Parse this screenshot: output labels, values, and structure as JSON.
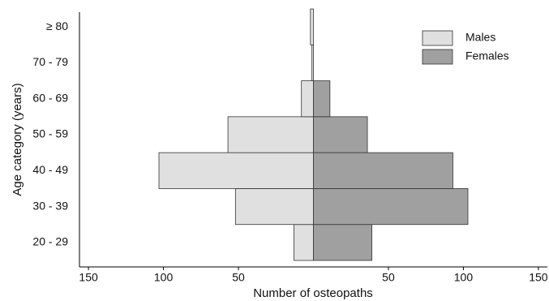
{
  "chart_data": {
    "type": "pyramid",
    "categories": [
      "20 - 29",
      "30 - 39",
      "40 - 49",
      "50 - 59",
      "60 - 69",
      "70 - 79",
      "≥ 80"
    ],
    "series": [
      {
        "name": "Males",
        "color": "#e0e0e0",
        "values": [
          13,
          52,
          103,
          57,
          8,
          1,
          2
        ]
      },
      {
        "name": "Females",
        "color": "#a0a0a0",
        "values": [
          39,
          103,
          93,
          36,
          11,
          0,
          0
        ]
      }
    ],
    "xlabel": "Number of osteopaths",
    "ylabel": "Age category (years)",
    "xlim": [
      -156,
      156
    ],
    "xticks": [
      {
        "value": -150,
        "label": "150"
      },
      {
        "value": -100,
        "label": "100"
      },
      {
        "value": -50,
        "label": "50"
      },
      50,
      100,
      150
    ],
    "legend": "upper right"
  }
}
